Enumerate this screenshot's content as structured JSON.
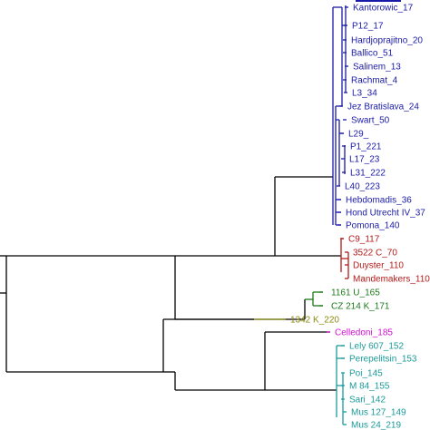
{
  "tree": {
    "clusters": [
      {
        "id": "blue",
        "color": "#1a1aa8"
      },
      {
        "id": "red",
        "color": "#b21a1a"
      },
      {
        "id": "green",
        "color": "#1a7a1a"
      },
      {
        "id": "olive",
        "color": "#8a8a10"
      },
      {
        "id": "magenta",
        "color": "#d10fd1"
      },
      {
        "id": "teal",
        "color": "#1a9a9a"
      }
    ],
    "leaves": [
      {
        "label": "Kantorowic_17",
        "cluster": "blue"
      },
      {
        "label": "P12_17",
        "cluster": "blue"
      },
      {
        "label": "Hardjoprajitno_20",
        "cluster": "blue"
      },
      {
        "label": "Ballico_51",
        "cluster": "blue"
      },
      {
        "label": "Salinem_13",
        "cluster": "blue"
      },
      {
        "label": "Rachmat_4",
        "cluster": "blue"
      },
      {
        "label": "L3_34",
        "cluster": "blue"
      },
      {
        "label": "Jez Bratislava_24",
        "cluster": "blue"
      },
      {
        "label": "Swart_50",
        "cluster": "blue"
      },
      {
        "label": "L29_",
        "cluster": "blue"
      },
      {
        "label": "P1_221",
        "cluster": "blue"
      },
      {
        "label": "L17_23",
        "cluster": "blue"
      },
      {
        "label": "L31_222",
        "cluster": "blue"
      },
      {
        "label": "L40_223",
        "cluster": "blue"
      },
      {
        "label": "Hebdomadis_36",
        "cluster": "blue"
      },
      {
        "label": "Hond Utrecht IV_37",
        "cluster": "blue"
      },
      {
        "label": "Pomona_140",
        "cluster": "blue"
      },
      {
        "label": "C9_117",
        "cluster": "red"
      },
      {
        "label": "3522 C_70",
        "cluster": "red"
      },
      {
        "label": "Duyster_110",
        "cluster": "red"
      },
      {
        "label": "Mandemakers_110",
        "cluster": "red"
      },
      {
        "label": "1161 U_165",
        "cluster": "green"
      },
      {
        "label": "CZ 214 K_171",
        "cluster": "green"
      },
      {
        "label": "1342 K_220",
        "cluster": "olive"
      },
      {
        "label": "Celledoni_185",
        "cluster": "magenta"
      },
      {
        "label": "Lely 607_152",
        "cluster": "teal"
      },
      {
        "label": "Perepelitsin_153",
        "cluster": "teal"
      },
      {
        "label": "Poi_145",
        "cluster": "teal"
      },
      {
        "label": "M 84_155",
        "cluster": "teal"
      },
      {
        "label": "Sari_142",
        "cluster": "teal"
      },
      {
        "label": "Mus 127_149",
        "cluster": "teal"
      },
      {
        "label": "Mus 24_219",
        "cluster": "teal"
      }
    ]
  }
}
